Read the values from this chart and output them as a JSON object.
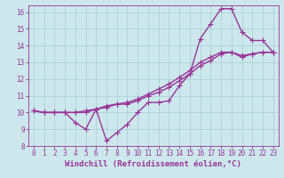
{
  "xlabel": "Windchill (Refroidissement éolien,°C)",
  "background_color": "#cce8ec",
  "grid_color": "#aaccd4",
  "line_color": "#993399",
  "xlim": [
    -0.5,
    23.5
  ],
  "ylim": [
    8,
    16.4
  ],
  "xticks": [
    0,
    1,
    2,
    3,
    4,
    5,
    6,
    7,
    8,
    9,
    10,
    11,
    12,
    13,
    14,
    15,
    16,
    17,
    18,
    19,
    20,
    21,
    22,
    23
  ],
  "yticks": [
    8,
    9,
    10,
    11,
    12,
    13,
    14,
    15,
    16
  ],
  "line1_x": [
    0,
    1,
    2,
    3,
    4,
    5,
    6,
    7,
    8,
    9,
    10,
    11,
    12,
    13,
    14,
    15,
    16,
    17,
    18,
    19,
    20,
    21,
    22,
    23
  ],
  "line1_y": [
    10.1,
    10.0,
    10.0,
    10.0,
    9.4,
    9.0,
    10.2,
    8.3,
    8.8,
    9.3,
    10.0,
    10.6,
    10.6,
    10.7,
    11.6,
    12.3,
    14.4,
    15.3,
    16.2,
    16.2,
    14.8,
    14.3,
    14.3,
    13.6
  ],
  "line2_x": [
    0,
    1,
    2,
    3,
    4,
    5,
    6,
    7,
    8,
    9,
    10,
    11,
    12,
    13,
    14,
    15,
    16,
    17,
    18,
    19,
    20,
    21,
    22,
    23
  ],
  "line2_y": [
    10.1,
    10.0,
    10.0,
    10.0,
    10.0,
    10.0,
    10.2,
    10.4,
    10.5,
    10.5,
    10.7,
    11.0,
    11.2,
    11.5,
    11.9,
    12.3,
    12.8,
    13.1,
    13.5,
    13.6,
    13.3,
    13.5,
    13.6,
    13.6
  ],
  "line3_x": [
    0,
    1,
    2,
    3,
    4,
    5,
    6,
    7,
    8,
    9,
    10,
    11,
    12,
    13,
    14,
    15,
    16,
    17,
    18,
    19,
    20,
    21,
    22,
    23
  ],
  "line3_y": [
    10.1,
    10.0,
    10.0,
    10.0,
    10.0,
    10.1,
    10.2,
    10.3,
    10.5,
    10.6,
    10.8,
    11.1,
    11.4,
    11.7,
    12.1,
    12.5,
    13.0,
    13.3,
    13.6,
    13.6,
    13.4,
    13.5,
    13.6,
    13.6
  ],
  "marker_size": 4,
  "line_width": 1.0,
  "tick_fontsize": 5.5,
  "xlabel_fontsize": 6.5
}
